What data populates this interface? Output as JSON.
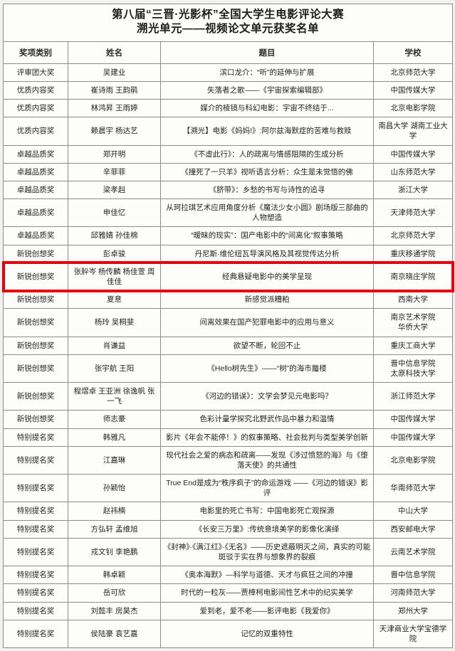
{
  "title": {
    "line1": "第八届“三晋·光影杯”全国大学生电影评论大赛",
    "line2": "溯光单元——视频论文单元获奖名单"
  },
  "table": {
    "headers": [
      "奖项类别",
      "姓名",
      "题目",
      "学校"
    ],
    "rows": [
      {
        "category": "评审团大奖",
        "names": "吴建业",
        "title": "滨口龙介：“听”的延伸与扩展",
        "school": "北京师范大学"
      },
      {
        "category": "优质内容奖",
        "names": "崔诗雨 王韵鹃",
        "title": "失落者之歌——《宇宙探索编辑部》",
        "school": "中国传媒大学"
      },
      {
        "category": "优质内容奖",
        "names": "林鸿昇 王雨婷",
        "title": "媒介的棱镜与科幻电影：宇宙不终结于...",
        "school": "北京电影学院"
      },
      {
        "category": "优质内容奖",
        "names": "赖晨宇 杨达艺",
        "title": "【溯光】电影《妈妈!》:阿尔兹海默症的苦难与救赎",
        "school": "南昌大学 湖南工业大学"
      },
      {
        "category": "卓越品质奖",
        "names": "郑开明",
        "title": "《不虚此行》：人的疏离与情感阻隔的生成分析",
        "school": "中国传媒大学"
      },
      {
        "category": "卓越品质奖",
        "names": "辛菲菲",
        "title": "《撞死了一只羊》视听语言分析：众生是未觉悟的佛",
        "school": "山东师范大学"
      },
      {
        "category": "卓越品质奖",
        "names": "梁孝赳",
        "title": "《脐带》：乡愁的书写与诗性的追寻",
        "school": "浙江大学"
      },
      {
        "category": "卓越品质奖",
        "names": "申佳忆",
        "title": "从珂拉琪艺术应用角度分析《魔法少女小圆》剧场版三部曲的人物塑造",
        "school": "天津师范大学"
      },
      {
        "category": "卓越品质奖",
        "names": "邱雅婧 孙佳棉",
        "title": "“暧昧的现实”：国产电影中的“间离化”叙事策略",
        "school": "北京师范大学"
      },
      {
        "category": "新锐创想奖",
        "names": "彭卓骏",
        "title": "丹尼斯·维伦纽瓦导演风格及其视觉传达分析",
        "school": "重庆移通学院"
      },
      {
        "category": "新锐创想奖",
        "names": "张肸岑 杨传麟 杨佳萱 周佳佳",
        "title": "经典悬疑电影中的美学呈现",
        "school": "南京晓庄学院",
        "highlighted": true
      },
      {
        "category": "新锐创想奖",
        "names": "夏意",
        "title": "新感觉派糟粕",
        "school": "西南大学"
      },
      {
        "category": "新锐创想奖",
        "names": "杨玲 吴桐斐",
        "title": "间离效果在国产犯罪电影中的应用与意义",
        "school": "南京艺术学院\n华侨大学"
      },
      {
        "category": "新锐创想奖",
        "names": "肖谦益",
        "title": "欲望不断，轮回不止",
        "school": "重庆工商大学"
      },
      {
        "category": "新锐创想奖",
        "names": "张宇航 王阳",
        "title": "《Hello树先生》——“树”的海市蜃楼",
        "school": "晋中信息学院\n太原科技大学"
      },
      {
        "category": "新锐创想奖",
        "names": "程熠卓 王亚洲 徐逸帆 张一飞",
        "title": "《河边的错误》：文学会梦见元电影吗？",
        "school": "浙江师范大学"
      },
      {
        "category": "新锐创想奖",
        "names": "师志豪",
        "title": "色彩计量学探究北野武作品中暴力和温情",
        "school": "中国传媒大学"
      },
      {
        "category": "特别提名奖",
        "names": "韩雅凡",
        "title": "影片《年会不能停！》的叙事策略、社会批判与类型美学创新",
        "school": "中国传媒大学"
      },
      {
        "category": "特别提名奖",
        "names": "江嘉琳",
        "title": "现代社会之爱的病态和疏离——发现《涉过愤怒的海》与《堕落天使》的共通性",
        "school": "北京电影学院"
      },
      {
        "category": "特别提名奖",
        "names": "孙颖怡",
        "title": "True End是成为“秩序疯子”的命运游戏 ——《河边的错误》影评",
        "school": "华南师范大学"
      },
      {
        "category": "特别提名奖",
        "names": "赵祎楠",
        "title": "电影里的死亡书写：中国电影死亡观探源",
        "school": "中山大学"
      },
      {
        "category": "特别提名奖",
        "names": "方弘轩 孟维旭",
        "title": "《长安三万里》:传统意境美学的影像化演绎",
        "school": "西安邮电大学"
      },
      {
        "category": "特别提名奖",
        "names": "戎文钊 李艳鹏",
        "title": "《封神》·《满江红》·《无名》——历史遮蔽明灭之间，真实的可能斑驳于实在界与想象界的裂痕",
        "school": "云南艺术学院"
      },
      {
        "category": "特别提名奖",
        "names": "韩卓颖",
        "title": "《奥本海默》—科学与道德、天才与疯狂之间的冲撞",
        "school": "晋中信息学院"
      },
      {
        "category": "特别提名奖",
        "names": "岳可欣",
        "title": "时代的一粒灰——贾樟柯电影间性艺术中的纪实美学",
        "school": "河南师范大学"
      },
      {
        "category": "特别提名奖",
        "names": "刘懿丰 房昊杰",
        "title": "爱到老，爱不老——影评电影《我爱你》",
        "school": "郑州大学"
      },
      {
        "category": "特别提名奖",
        "names": "侯陆豪 袁艺嘉",
        "title": "记忆的双重特性",
        "school": "天津商业大学宝德学院"
      }
    ]
  },
  "colors": {
    "highlight_border": "#e8000d",
    "grid_border": "#8c8c8c",
    "text": "#222222",
    "background": "#fdfdfc"
  }
}
